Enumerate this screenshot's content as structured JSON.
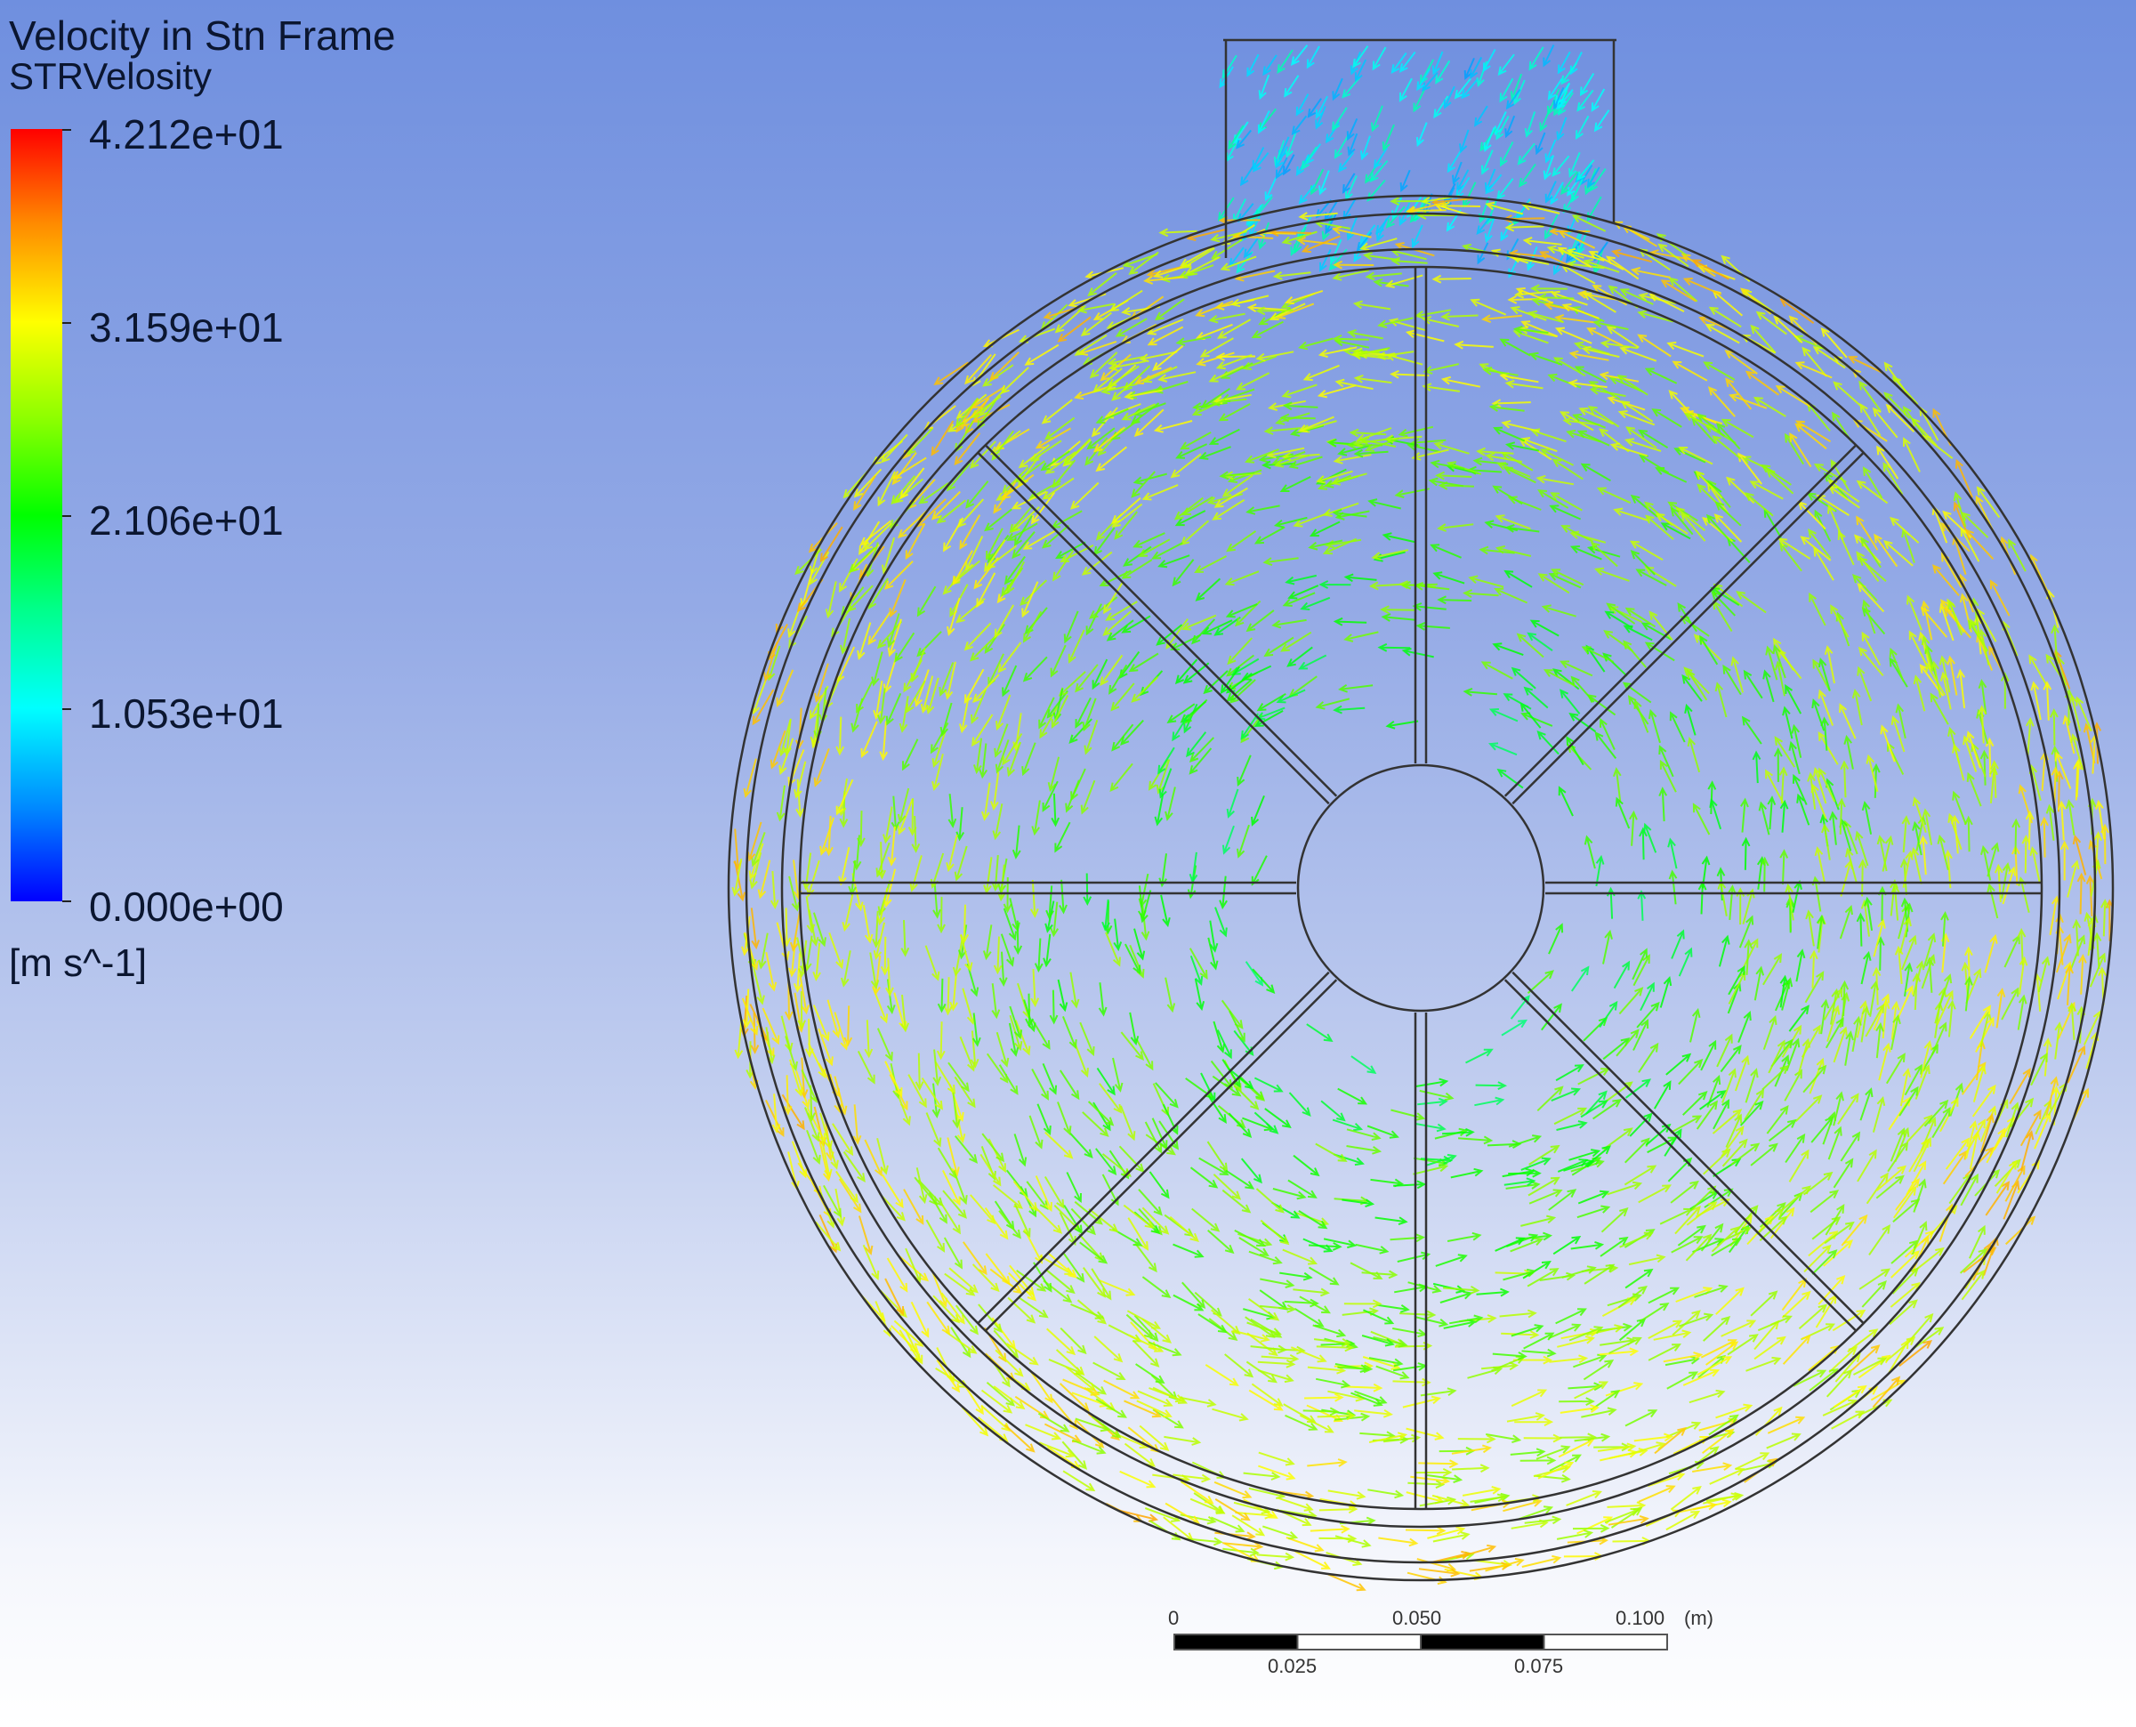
{
  "legend": {
    "title": "Velocity in Stn Frame",
    "variable": "STRVelosity",
    "ticks": [
      "4.212e+01",
      "3.159e+01",
      "2.106e+01",
      "1.053e+01",
      "0.000e+00"
    ],
    "range": [
      0,
      42.12
    ],
    "units": "[m s^-1]",
    "colormap": [
      "#0000ff",
      "#0088ff",
      "#00ffff",
      "#00ff88",
      "#00ff00",
      "#88ff00",
      "#ffff00",
      "#ff8800",
      "#ff0000"
    ]
  },
  "scale_bar": {
    "labels_top": [
      "0",
      "0.050",
      "0.100"
    ],
    "labels_bottom": [
      "0.025",
      "0.075"
    ],
    "unit": "(m)"
  },
  "geometry": {
    "spokes": 8
  }
}
